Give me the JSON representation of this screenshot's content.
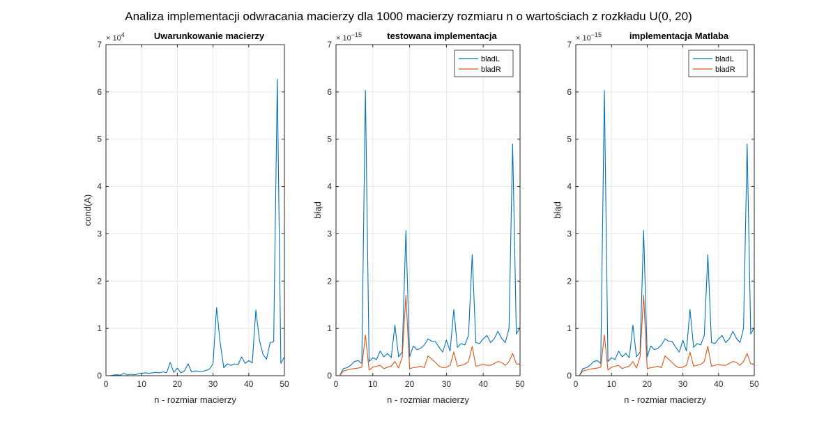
{
  "figure": {
    "suptitle": "Analiza implementacji odwracania macierzy dla 1000 macierzy rozmiaru n o wartościach z rozkładu U(0, 20)"
  },
  "colors": {
    "bladL": "#0072BD",
    "bladR": "#D95319",
    "grid": "#e6e6e6",
    "axis": "#262626"
  },
  "chart_data": [
    {
      "type": "line",
      "title": "Uwarunkowanie macierzy",
      "xlabel": "n - rozmiar macierzy",
      "ylabel": "cond(A)",
      "exponent_base": "× 10",
      "exponent_power": "4",
      "xlim": [
        0,
        50
      ],
      "ylim": [
        0,
        7
      ],
      "xticks": [
        0,
        10,
        20,
        30,
        40,
        50
      ],
      "yticks": [
        0,
        1,
        2,
        3,
        4,
        5,
        6,
        7
      ],
      "grid": true,
      "legend": null,
      "x": [
        1,
        2,
        3,
        4,
        5,
        6,
        7,
        8,
        9,
        10,
        11,
        12,
        13,
        14,
        15,
        16,
        17,
        18,
        19,
        20,
        21,
        22,
        23,
        24,
        25,
        26,
        27,
        28,
        29,
        30,
        31,
        32,
        33,
        34,
        35,
        36,
        37,
        38,
        39,
        40,
        41,
        42,
        43,
        44,
        45,
        46,
        47,
        48,
        49,
        50
      ],
      "series": [
        {
          "color_key": "bladL",
          "values": [
            0.0,
            0.01,
            0.02,
            0.01,
            0.05,
            0.02,
            0.03,
            0.02,
            0.04,
            0.05,
            0.06,
            0.05,
            0.06,
            0.07,
            0.06,
            0.08,
            0.06,
            0.28,
            0.07,
            0.16,
            0.06,
            0.1,
            0.25,
            0.08,
            0.1,
            0.09,
            0.09,
            0.11,
            0.14,
            0.25,
            1.44,
            0.7,
            0.17,
            0.25,
            0.22,
            0.25,
            0.23,
            0.4,
            0.26,
            0.32,
            0.27,
            1.39,
            0.75,
            0.45,
            0.35,
            0.7,
            0.72,
            6.27,
            0.26,
            0.4
          ]
        }
      ]
    },
    {
      "type": "line",
      "title": "testowana implementacja",
      "xlabel": "n - rozmiar macierzy",
      "ylabel": "błąd",
      "exponent_base": "× 10",
      "exponent_power": "−15",
      "xlim": [
        0,
        50
      ],
      "ylim": [
        0,
        7
      ],
      "xticks": [
        0,
        10,
        20,
        30,
        40,
        50
      ],
      "yticks": [
        0,
        1,
        2,
        3,
        4,
        5,
        6,
        7
      ],
      "grid": true,
      "legend": "top-right",
      "x": [
        1,
        2,
        3,
        4,
        5,
        6,
        7,
        8,
        9,
        10,
        11,
        12,
        13,
        14,
        15,
        16,
        17,
        18,
        19,
        20,
        21,
        22,
        23,
        24,
        25,
        26,
        27,
        28,
        29,
        30,
        31,
        32,
        33,
        34,
        35,
        36,
        37,
        38,
        39,
        40,
        41,
        42,
        43,
        44,
        45,
        46,
        47,
        48,
        49,
        50
      ],
      "series": [
        {
          "name": "bladL",
          "color_key": "bladL",
          "values": [
            0.0,
            0.15,
            0.17,
            0.22,
            0.3,
            0.32,
            0.26,
            6.03,
            0.3,
            0.38,
            0.34,
            0.52,
            0.4,
            0.47,
            0.38,
            1.07,
            0.4,
            0.5,
            3.07,
            0.4,
            0.63,
            0.55,
            0.58,
            0.65,
            0.78,
            0.73,
            0.72,
            0.6,
            0.5,
            0.75,
            0.52,
            1.4,
            0.6,
            0.68,
            0.65,
            0.85,
            2.56,
            0.7,
            0.68,
            0.78,
            0.85,
            0.7,
            0.78,
            0.94,
            0.79,
            0.7,
            1.0,
            4.9,
            0.88,
            1.02
          ]
        },
        {
          "name": "bladR",
          "color_key": "bladR",
          "values": [
            0.0,
            0.1,
            0.12,
            0.14,
            0.15,
            0.16,
            0.18,
            0.86,
            0.12,
            0.18,
            0.2,
            0.22,
            0.15,
            0.18,
            0.2,
            0.3,
            0.16,
            0.4,
            1.7,
            0.15,
            0.17,
            0.18,
            0.2,
            0.17,
            0.42,
            0.35,
            0.28,
            0.2,
            0.17,
            0.18,
            0.22,
            0.5,
            0.2,
            0.22,
            0.24,
            0.3,
            0.62,
            0.2,
            0.22,
            0.24,
            0.22,
            0.22,
            0.26,
            0.3,
            0.28,
            0.22,
            0.3,
            0.47,
            0.25,
            0.24
          ]
        }
      ]
    },
    {
      "type": "line",
      "title": "implementacja Matlaba",
      "xlabel": "n - rozmiar macierzy",
      "ylabel": "błąd",
      "exponent_base": "× 10",
      "exponent_power": "−15",
      "xlim": [
        0,
        50
      ],
      "ylim": [
        0,
        7
      ],
      "xticks": [
        0,
        10,
        20,
        30,
        40,
        50
      ],
      "yticks": [
        0,
        1,
        2,
        3,
        4,
        5,
        6,
        7
      ],
      "grid": true,
      "legend": "top-right",
      "x": [
        1,
        2,
        3,
        4,
        5,
        6,
        7,
        8,
        9,
        10,
        11,
        12,
        13,
        14,
        15,
        16,
        17,
        18,
        19,
        20,
        21,
        22,
        23,
        24,
        25,
        26,
        27,
        28,
        29,
        30,
        31,
        32,
        33,
        34,
        35,
        36,
        37,
        38,
        39,
        40,
        41,
        42,
        43,
        44,
        45,
        46,
        47,
        48,
        49,
        50
      ],
      "series": [
        {
          "name": "bladL",
          "color_key": "bladL",
          "values": [
            0.0,
            0.15,
            0.17,
            0.22,
            0.3,
            0.32,
            0.26,
            6.03,
            0.3,
            0.38,
            0.34,
            0.52,
            0.4,
            0.47,
            0.38,
            1.07,
            0.4,
            0.5,
            3.07,
            0.4,
            0.63,
            0.55,
            0.58,
            0.65,
            0.78,
            0.73,
            0.72,
            0.6,
            0.5,
            0.75,
            0.52,
            1.4,
            0.6,
            0.68,
            0.65,
            0.85,
            2.56,
            0.7,
            0.68,
            0.78,
            0.85,
            0.7,
            0.78,
            0.94,
            0.79,
            0.7,
            1.0,
            4.9,
            0.88,
            1.02
          ]
        },
        {
          "name": "bladR",
          "color_key": "bladR",
          "values": [
            0.0,
            0.1,
            0.12,
            0.14,
            0.15,
            0.16,
            0.18,
            0.86,
            0.12,
            0.18,
            0.2,
            0.22,
            0.15,
            0.18,
            0.2,
            0.3,
            0.16,
            0.4,
            1.7,
            0.15,
            0.17,
            0.18,
            0.2,
            0.17,
            0.42,
            0.35,
            0.28,
            0.2,
            0.17,
            0.18,
            0.22,
            0.5,
            0.2,
            0.22,
            0.24,
            0.3,
            0.62,
            0.2,
            0.22,
            0.24,
            0.22,
            0.22,
            0.26,
            0.3,
            0.28,
            0.22,
            0.3,
            0.47,
            0.25,
            0.24
          ]
        }
      ]
    }
  ]
}
